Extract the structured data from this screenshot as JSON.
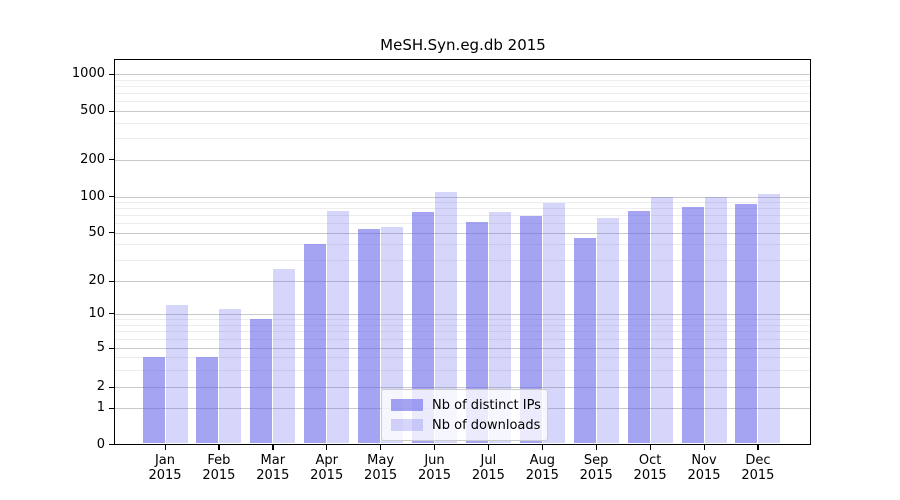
{
  "chart_data": {
    "type": "bar",
    "title": "MeSH.Syn.eg.db 2015",
    "categories": [
      "Jan",
      "Feb",
      "Mar",
      "Apr",
      "May",
      "Jun",
      "Jul",
      "Aug",
      "Sep",
      "Oct",
      "Nov",
      "Dec"
    ],
    "category_year": "2015",
    "series": [
      {
        "key": "distinct-ips",
        "name": "Nb of distinct IPs",
        "color": "rgba(98,98,235,0.58)",
        "values": [
          4,
          4,
          9,
          40,
          53,
          74,
          61,
          69,
          45,
          76,
          82,
          87
        ]
      },
      {
        "key": "downloads",
        "name": "Nb of downloads",
        "color": "rgba(98,98,235,0.26)",
        "values": [
          12,
          11,
          25,
          75,
          56,
          108,
          74,
          88,
          66,
          100,
          100,
          105
        ]
      }
    ],
    "yscale": "symlog",
    "ylim": [
      0,
      1300
    ],
    "ytick_values": [
      0,
      1,
      2,
      5,
      10,
      20,
      50,
      100,
      200,
      500,
      1000
    ],
    "ytick_labels": [
      "0",
      "1",
      "2",
      "5",
      "10",
      "20",
      "50",
      "100",
      "200",
      "500",
      "1000"
    ],
    "minor_tick_values": [
      3,
      4,
      6,
      7,
      8,
      9,
      30,
      40,
      60,
      70,
      80,
      90,
      300,
      400,
      600,
      700,
      800,
      900
    ],
    "grid": true,
    "legend_position": "lower-center",
    "colors": {
      "major_grid": "#c9c9c9",
      "minor_grid": "#ededed",
      "axis": "#000000",
      "background": "#ffffff"
    }
  }
}
